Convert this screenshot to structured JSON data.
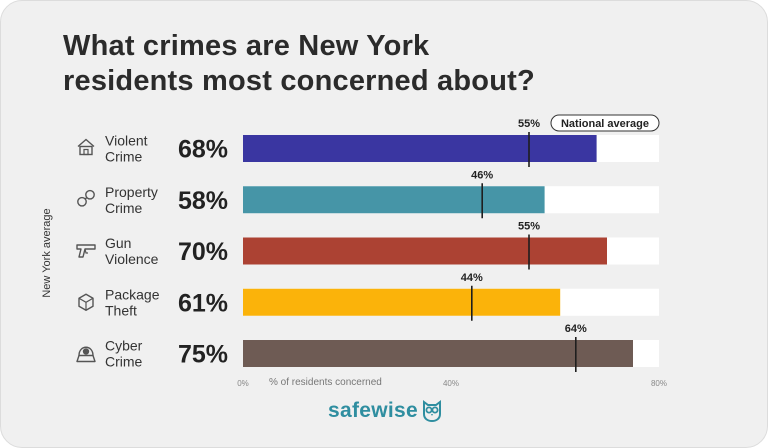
{
  "title_lines": [
    "What crimes are New York",
    "residents most concerned about?"
  ],
  "brand": {
    "name": "safewise",
    "color": "#2f8ea0"
  },
  "chart_data": {
    "type": "bar",
    "orientation": "horizontal",
    "title": "What crimes are New York residents most concerned about?",
    "categories": [
      {
        "lines": [
          "Violent",
          "Crime"
        ],
        "icon": "house-icon"
      },
      {
        "lines": [
          "Property",
          "Crime"
        ],
        "icon": "handcuffs-icon"
      },
      {
        "lines": [
          "Gun",
          "Violence"
        ],
        "icon": "gun-icon"
      },
      {
        "lines": [
          "Package",
          "Theft"
        ],
        "icon": "package-icon"
      },
      {
        "lines": [
          "Cyber",
          "Crime"
        ],
        "icon": "hacker-icon"
      }
    ],
    "series": [
      {
        "name": "New York average",
        "values": [
          68,
          58,
          70,
          61,
          75
        ],
        "value_labels": [
          "68%",
          "58%",
          "70%",
          "61%",
          "75%"
        ],
        "colors": [
          "#3a36a1",
          "#4695a7",
          "#ac4233",
          "#fbb30a",
          "#6e5b54"
        ]
      },
      {
        "name": "National average",
        "values": [
          55,
          46,
          55,
          44,
          64
        ],
        "value_labels": [
          "55%",
          "46%",
          "55%",
          "44%",
          "64%"
        ],
        "marker": "vertical-line"
      }
    ],
    "national_average_label": "National average",
    "ylabel": "New York average",
    "xlabel": "% of residents concerned",
    "xlim": [
      0,
      80
    ],
    "xticks": [
      "0%",
      "40%",
      "80%"
    ],
    "xtick_values": [
      0,
      40,
      80
    ],
    "bar_track_color": "#ffffff"
  }
}
